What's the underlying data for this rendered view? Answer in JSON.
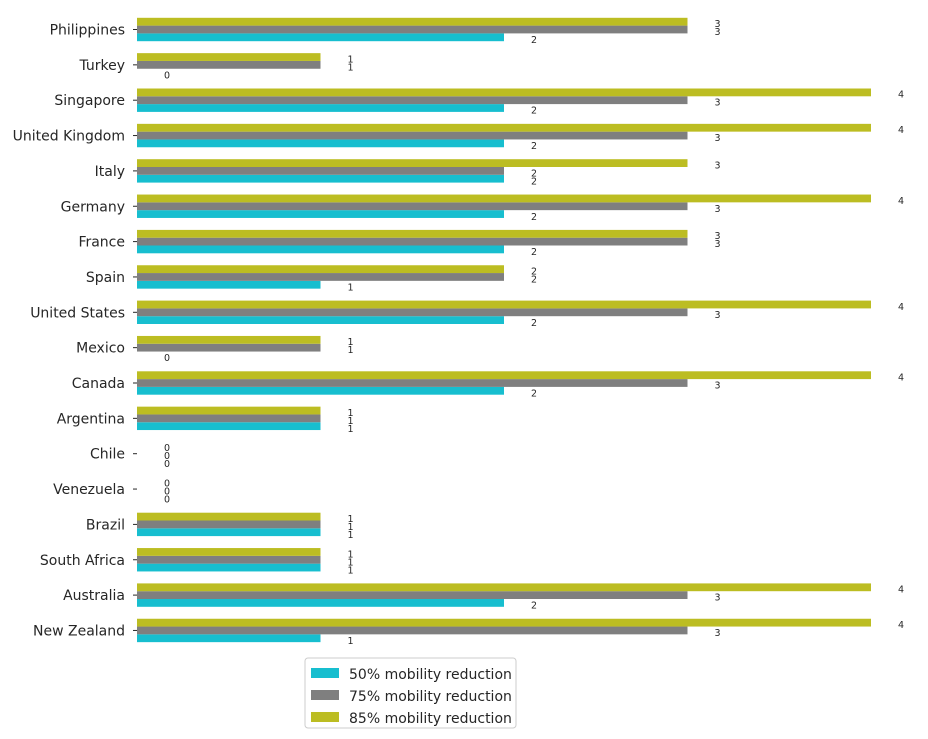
{
  "chart_data": {
    "type": "bar",
    "orientation": "horizontal",
    "categories": [
      "Philippines",
      "Turkey",
      "Singapore",
      "United Kingdom",
      "Italy",
      "Germany",
      "France",
      "Spain",
      "United States",
      "Mexico",
      "Canada",
      "Argentina",
      "Chile",
      "Venezuela",
      "Brazil",
      "South Africa",
      "Australia",
      "New Zealand"
    ],
    "series": [
      {
        "name": "50% mobility reduction",
        "color": "#17becf",
        "values": [
          2,
          0,
          2,
          2,
          2,
          2,
          2,
          1,
          2,
          0,
          2,
          1,
          0,
          0,
          1,
          1,
          2,
          1
        ]
      },
      {
        "name": "75% mobility reduction",
        "color": "#7f7f7f",
        "values": [
          3,
          1,
          3,
          3,
          2,
          3,
          3,
          2,
          3,
          1,
          3,
          1,
          0,
          0,
          1,
          1,
          3,
          3
        ]
      },
      {
        "name": "85% mobility reduction",
        "color": "#bcbd22",
        "values": [
          3,
          1,
          4,
          4,
          3,
          4,
          3,
          2,
          4,
          1,
          4,
          1,
          0,
          0,
          1,
          1,
          4,
          4
        ]
      }
    ],
    "xlim": [
      0,
      4
    ],
    "grid": false,
    "x_axis_visible": false,
    "legend_position": "bottom"
  }
}
